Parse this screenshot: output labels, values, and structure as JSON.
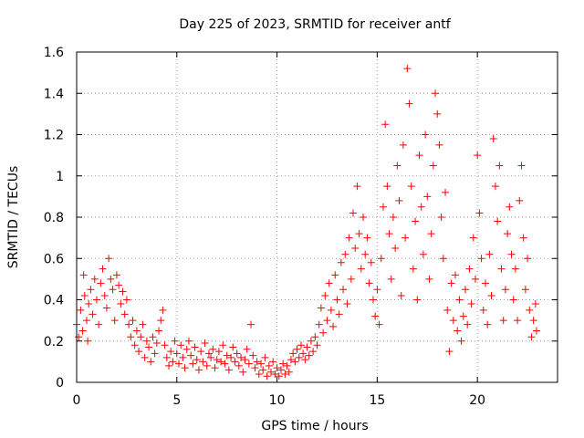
{
  "chart_data": {
    "type": "scatter",
    "title": "Day 225 of 2023, SRMTID for receiver antf",
    "xlabel": "GPS time / hours",
    "ylabel": "SRMTID / TECUs",
    "xlim": [
      0,
      24
    ],
    "ylim": [
      0,
      1.6
    ],
    "xticks": [
      0,
      5,
      10,
      15,
      20
    ],
    "xtick_labels": [
      "0",
      "5",
      "10",
      "15",
      "20"
    ],
    "yticks": [
      0,
      0.2,
      0.4,
      0.6,
      0.8,
      1,
      1.2,
      1.4,
      1.6
    ],
    "ytick_labels": [
      "0",
      "0.2",
      "0.4",
      "0.6",
      "0.8",
      "1",
      "1.2",
      "1.4",
      "1.6"
    ],
    "grid": true,
    "marker": "+",
    "color": "#ff0000",
    "series": [
      {
        "name": "SRMTID",
        "points": [
          [
            0.0,
            0.28
          ],
          [
            0.1,
            0.22
          ],
          [
            0.2,
            0.35
          ],
          [
            0.3,
            0.25
          ],
          [
            0.35,
            0.52
          ],
          [
            0.4,
            0.42
          ],
          [
            0.5,
            0.3
          ],
          [
            0.55,
            0.2
          ],
          [
            0.6,
            0.38
          ],
          [
            0.7,
            0.45
          ],
          [
            0.8,
            0.33
          ],
          [
            0.9,
            0.5
          ],
          [
            1.0,
            0.4
          ],
          [
            1.1,
            0.28
          ],
          [
            1.2,
            0.48
          ],
          [
            1.3,
            0.55
          ],
          [
            1.4,
            0.42
          ],
          [
            1.5,
            0.36
          ],
          [
            1.6,
            0.6
          ],
          [
            1.7,
            0.5
          ],
          [
            1.8,
            0.45
          ],
          [
            1.9,
            0.3
          ],
          [
            2.0,
            0.52
          ],
          [
            2.1,
            0.47
          ],
          [
            2.2,
            0.38
          ],
          [
            2.3,
            0.44
          ],
          [
            2.4,
            0.33
          ],
          [
            2.5,
            0.4
          ],
          [
            2.6,
            0.28
          ],
          [
            2.7,
            0.22
          ],
          [
            2.8,
            0.3
          ],
          [
            2.9,
            0.18
          ],
          [
            3.0,
            0.25
          ],
          [
            3.1,
            0.15
          ],
          [
            3.2,
            0.22
          ],
          [
            3.3,
            0.28
          ],
          [
            3.4,
            0.12
          ],
          [
            3.5,
            0.2
          ],
          [
            3.6,
            0.17
          ],
          [
            3.7,
            0.1
          ],
          [
            3.8,
            0.22
          ],
          [
            3.9,
            0.14
          ],
          [
            4.0,
            0.19
          ],
          [
            4.1,
            0.25
          ],
          [
            4.2,
            0.3
          ],
          [
            4.3,
            0.35
          ],
          [
            4.4,
            0.18
          ],
          [
            4.5,
            0.12
          ],
          [
            4.6,
            0.08
          ],
          [
            4.7,
            0.15
          ],
          [
            4.8,
            0.1
          ],
          [
            4.9,
            0.2
          ],
          [
            5.0,
            0.14
          ],
          [
            5.1,
            0.09
          ],
          [
            5.2,
            0.18
          ],
          [
            5.3,
            0.12
          ],
          [
            5.4,
            0.07
          ],
          [
            5.5,
            0.16
          ],
          [
            5.6,
            0.2
          ],
          [
            5.7,
            0.13
          ],
          [
            5.8,
            0.09
          ],
          [
            5.9,
            0.17
          ],
          [
            6.0,
            0.11
          ],
          [
            6.1,
            0.06
          ],
          [
            6.2,
            0.15
          ],
          [
            6.3,
            0.1
          ],
          [
            6.4,
            0.19
          ],
          [
            6.5,
            0.08
          ],
          [
            6.6,
            0.14
          ],
          [
            6.7,
            0.12
          ],
          [
            6.8,
            0.16
          ],
          [
            6.9,
            0.07
          ],
          [
            7.0,
            0.11
          ],
          [
            7.1,
            0.15
          ],
          [
            7.2,
            0.1
          ],
          [
            7.3,
            0.18
          ],
          [
            7.4,
            0.09
          ],
          [
            7.5,
            0.13
          ],
          [
            7.6,
            0.06
          ],
          [
            7.7,
            0.12
          ],
          [
            7.8,
            0.17
          ],
          [
            7.9,
            0.1
          ],
          [
            8.0,
            0.14
          ],
          [
            8.1,
            0.08
          ],
          [
            8.2,
            0.12
          ],
          [
            8.3,
            0.05
          ],
          [
            8.4,
            0.11
          ],
          [
            8.5,
            0.16
          ],
          [
            8.6,
            0.09
          ],
          [
            8.7,
            0.28
          ],
          [
            8.8,
            0.13
          ],
          [
            8.9,
            0.07
          ],
          [
            9.0,
            0.1
          ],
          [
            9.1,
            0.04
          ],
          [
            9.2,
            0.09
          ],
          [
            9.3,
            0.06
          ],
          [
            9.4,
            0.12
          ],
          [
            9.5,
            0.03
          ],
          [
            9.6,
            0.08
          ],
          [
            9.7,
            0.05
          ],
          [
            9.8,
            0.1
          ],
          [
            9.9,
            0.04
          ],
          [
            10.0,
            0.07
          ],
          [
            10.1,
            0.03
          ],
          [
            10.2,
            0.06
          ],
          [
            10.3,
            0.09
          ],
          [
            10.4,
            0.04
          ],
          [
            10.5,
            0.08
          ],
          [
            10.6,
            0.05
          ],
          [
            10.7,
            0.11
          ],
          [
            10.8,
            0.14
          ],
          [
            10.9,
            0.1
          ],
          [
            11.0,
            0.16
          ],
          [
            11.1,
            0.12
          ],
          [
            11.2,
            0.18
          ],
          [
            11.3,
            0.14
          ],
          [
            11.4,
            0.11
          ],
          [
            11.5,
            0.17
          ],
          [
            11.6,
            0.13
          ],
          [
            11.7,
            0.2
          ],
          [
            11.8,
            0.15
          ],
          [
            11.9,
            0.22
          ],
          [
            12.0,
            0.18
          ],
          [
            12.1,
            0.28
          ],
          [
            12.2,
            0.36
          ],
          [
            12.3,
            0.24
          ],
          [
            12.4,
            0.42
          ],
          [
            12.5,
            0.3
          ],
          [
            12.6,
            0.48
          ],
          [
            12.7,
            0.35
          ],
          [
            12.8,
            0.27
          ],
          [
            12.9,
            0.52
          ],
          [
            13.0,
            0.4
          ],
          [
            13.1,
            0.33
          ],
          [
            13.2,
            0.58
          ],
          [
            13.3,
            0.45
          ],
          [
            13.4,
            0.62
          ],
          [
            13.5,
            0.38
          ],
          [
            13.6,
            0.7
          ],
          [
            13.7,
            0.5
          ],
          [
            13.8,
            0.82
          ],
          [
            13.9,
            0.65
          ],
          [
            14.0,
            0.95
          ],
          [
            14.1,
            0.72
          ],
          [
            14.2,
            0.55
          ],
          [
            14.3,
            0.8
          ],
          [
            14.4,
            0.62
          ],
          [
            14.5,
            0.7
          ],
          [
            14.6,
            0.48
          ],
          [
            14.7,
            0.58
          ],
          [
            14.8,
            0.4
          ],
          [
            14.9,
            0.32
          ],
          [
            15.0,
            0.45
          ],
          [
            15.1,
            0.28
          ],
          [
            15.2,
            0.6
          ],
          [
            15.3,
            0.85
          ],
          [
            15.4,
            1.25
          ],
          [
            15.5,
            0.95
          ],
          [
            15.6,
            0.72
          ],
          [
            15.7,
            0.5
          ],
          [
            15.8,
            0.8
          ],
          [
            15.9,
            0.65
          ],
          [
            16.0,
            1.05
          ],
          [
            16.1,
            0.88
          ],
          [
            16.2,
            0.42
          ],
          [
            16.3,
            1.15
          ],
          [
            16.4,
            0.7
          ],
          [
            16.5,
            1.52
          ],
          [
            16.6,
            1.35
          ],
          [
            16.7,
            0.95
          ],
          [
            16.8,
            0.55
          ],
          [
            16.9,
            0.78
          ],
          [
            17.0,
            0.4
          ],
          [
            17.1,
            1.1
          ],
          [
            17.2,
            0.85
          ],
          [
            17.3,
            0.62
          ],
          [
            17.4,
            1.2
          ],
          [
            17.5,
            0.9
          ],
          [
            17.6,
            0.5
          ],
          [
            17.7,
            0.72
          ],
          [
            17.8,
            1.05
          ],
          [
            17.9,
            1.4
          ],
          [
            18.0,
            1.3
          ],
          [
            18.1,
            1.15
          ],
          [
            18.2,
            0.8
          ],
          [
            18.3,
            0.6
          ],
          [
            18.4,
            0.92
          ],
          [
            18.5,
            0.35
          ],
          [
            18.6,
            0.15
          ],
          [
            18.7,
            0.48
          ],
          [
            18.8,
            0.3
          ],
          [
            18.9,
            0.52
          ],
          [
            19.0,
            0.25
          ],
          [
            19.1,
            0.4
          ],
          [
            19.2,
            0.2
          ],
          [
            19.3,
            0.32
          ],
          [
            19.4,
            0.45
          ],
          [
            19.5,
            0.28
          ],
          [
            19.6,
            0.55
          ],
          [
            19.7,
            0.38
          ],
          [
            19.8,
            0.7
          ],
          [
            19.9,
            0.5
          ],
          [
            20.0,
            1.1
          ],
          [
            20.1,
            0.82
          ],
          [
            20.2,
            0.6
          ],
          [
            20.3,
            0.35
          ],
          [
            20.4,
            0.48
          ],
          [
            20.5,
            0.28
          ],
          [
            20.6,
            0.62
          ],
          [
            20.7,
            0.42
          ],
          [
            20.8,
            1.18
          ],
          [
            20.9,
            0.95
          ],
          [
            21.0,
            0.78
          ],
          [
            21.1,
            1.05
          ],
          [
            21.2,
            0.55
          ],
          [
            21.3,
            0.3
          ],
          [
            21.4,
            0.45
          ],
          [
            21.5,
            0.72
          ],
          [
            21.6,
            0.85
          ],
          [
            21.7,
            0.62
          ],
          [
            21.8,
            0.4
          ],
          [
            21.9,
            0.55
          ],
          [
            22.0,
            0.3
          ],
          [
            22.1,
            0.88
          ],
          [
            22.2,
            1.05
          ],
          [
            22.3,
            0.7
          ],
          [
            22.4,
            0.45
          ],
          [
            22.5,
            0.6
          ],
          [
            22.6,
            0.35
          ],
          [
            22.7,
            0.22
          ],
          [
            22.8,
            0.3
          ],
          [
            22.9,
            0.38
          ],
          [
            22.95,
            0.25
          ]
        ]
      }
    ]
  }
}
